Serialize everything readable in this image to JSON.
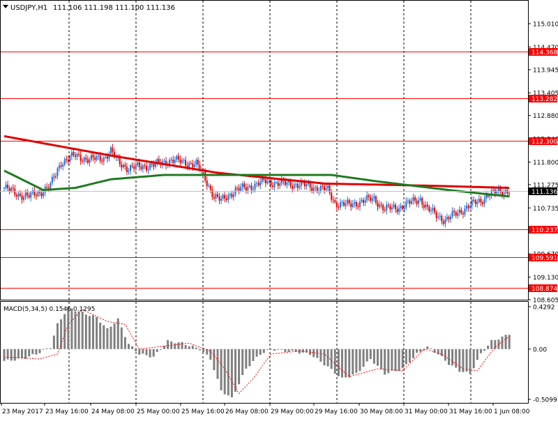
{
  "header": {
    "symbol": "USDJPY,H1",
    "ohlc": "111.106 111.198 111.100 111.136"
  },
  "price_axis": {
    "ticks": [
      "115.010",
      "114.470",
      "113.945",
      "113.405",
      "112.880",
      "112.340",
      "111.800",
      "111.275",
      "110.735",
      "110.210",
      "109.670",
      "109.130",
      "108.605"
    ],
    "current_price": "111.136"
  },
  "horizontal_levels": [
    {
      "label": "114.368",
      "value": 114.368
    },
    {
      "label": "113.282",
      "value": 113.282
    },
    {
      "label": "112.300",
      "value": 112.3
    },
    {
      "label": "110.237",
      "value": 110.237
    },
    {
      "label": "109.591",
      "value": 109.591
    },
    {
      "label": "108.874",
      "value": 108.874
    }
  ],
  "macd": {
    "label": "MACD(5,34,5) 0.1546 0.1295",
    "ticks": [
      "0.4292",
      "0.00",
      "-0.5099"
    ]
  },
  "time_axis": {
    "labels": [
      "23 May 2017",
      "23 May 16:00",
      "24 May 08:00",
      "25 May 00:00",
      "25 May 16:00",
      "26 May 08:00",
      "29 May 00:00",
      "29 May 16:00",
      "30 May 08:00",
      "31 May 00:00",
      "31 May 16:00",
      "1 Jun 08:00"
    ]
  },
  "colors": {
    "level_line": "#ff0000",
    "bull_candle": "#1e6fd9",
    "bear_candle": "#e00000",
    "ma_fast": "#e00000",
    "ma_slow": "#1f7a1f",
    "macd_hist": "#808080",
    "macd_signal": "#ff0000",
    "grid": "#000000"
  },
  "chart_data": [
    {
      "type": "candlestick",
      "title": "USDJPY,H1",
      "ylim": [
        108.605,
        115.3
      ],
      "levels": [
        114.368,
        113.282,
        112.3,
        110.237,
        109.591,
        108.874
      ],
      "close_path": [
        [
          0,
          111.2
        ],
        [
          8,
          111.05
        ],
        [
          14,
          111.0
        ],
        [
          20,
          111.1
        ],
        [
          26,
          111.25
        ],
        [
          32,
          111.8
        ],
        [
          40,
          111.95
        ],
        [
          48,
          111.85
        ],
        [
          56,
          111.9
        ],
        [
          60,
          112.05
        ],
        [
          64,
          111.8
        ],
        [
          70,
          111.65
        ],
        [
          78,
          111.7
        ],
        [
          86,
          111.75
        ],
        [
          94,
          111.85
        ],
        [
          100,
          111.8
        ],
        [
          108,
          111.75
        ],
        [
          112,
          111.5
        ],
        [
          118,
          111.0
        ],
        [
          122,
          110.9
        ],
        [
          130,
          111.15
        ],
        [
          136,
          111.2
        ],
        [
          146,
          111.35
        ],
        [
          156,
          111.3
        ],
        [
          166,
          111.28
        ],
        [
          176,
          111.2
        ],
        [
          182,
          111.15
        ],
        [
          186,
          110.85
        ],
        [
          194,
          110.8
        ],
        [
          202,
          110.9
        ],
        [
          208,
          110.95
        ],
        [
          214,
          110.7
        ],
        [
          222,
          110.75
        ],
        [
          228,
          110.85
        ],
        [
          234,
          110.95
        ],
        [
          238,
          110.7
        ],
        [
          244,
          110.55
        ],
        [
          248,
          110.45
        ],
        [
          254,
          110.6
        ],
        [
          262,
          110.8
        ],
        [
          268,
          110.9
        ],
        [
          272,
          111.05
        ],
        [
          280,
          111.12
        ],
        [
          284,
          111.14
        ]
      ],
      "ma_fast": [
        [
          0,
          112.4
        ],
        [
          60,
          111.95
        ],
        [
          120,
          111.55
        ],
        [
          180,
          111.3
        ],
        [
          240,
          111.25
        ],
        [
          284,
          111.2
        ]
      ],
      "ma_slow": [
        [
          0,
          111.6
        ],
        [
          22,
          111.15
        ],
        [
          40,
          111.2
        ],
        [
          60,
          111.4
        ],
        [
          90,
          111.5
        ],
        [
          150,
          111.5
        ],
        [
          184,
          111.5
        ],
        [
          210,
          111.35
        ],
        [
          250,
          111.15
        ],
        [
          284,
          111.0
        ]
      ]
    },
    {
      "type": "bar",
      "title": "MACD(5,34,5) 0.1546 0.1295",
      "ylim": [
        -0.5099,
        0.4292
      ],
      "histogram_path": [
        [
          0,
          -0.12
        ],
        [
          10,
          -0.1
        ],
        [
          18,
          -0.05
        ],
        [
          26,
          0.02
        ],
        [
          30,
          0.25
        ],
        [
          36,
          0.42
        ],
        [
          42,
          0.38
        ],
        [
          52,
          0.32
        ],
        [
          58,
          0.2
        ],
        [
          64,
          0.3
        ],
        [
          70,
          0.05
        ],
        [
          76,
          -0.05
        ],
        [
          84,
          -0.08
        ],
        [
          92,
          0.08
        ],
        [
          100,
          0.06
        ],
        [
          110,
          0.0
        ],
        [
          116,
          -0.1
        ],
        [
          122,
          -0.42
        ],
        [
          128,
          -0.5
        ],
        [
          136,
          -0.2
        ],
        [
          144,
          -0.05
        ],
        [
          150,
          0.0
        ],
        [
          158,
          -0.02
        ],
        [
          164,
          -0.03
        ],
        [
          172,
          -0.05
        ],
        [
          182,
          -0.18
        ],
        [
          190,
          -0.3
        ],
        [
          198,
          -0.25
        ],
        [
          206,
          -0.1
        ],
        [
          214,
          -0.25
        ],
        [
          224,
          -0.2
        ],
        [
          232,
          -0.05
        ],
        [
          238,
          0.02
        ],
        [
          244,
          -0.05
        ],
        [
          250,
          -0.15
        ],
        [
          256,
          -0.22
        ],
        [
          262,
          -0.25
        ],
        [
          268,
          -0.05
        ],
        [
          274,
          0.08
        ],
        [
          280,
          0.12
        ],
        [
          284,
          0.155
        ]
      ],
      "signal_path": [
        [
          0,
          -0.08
        ],
        [
          20,
          -0.1
        ],
        [
          30,
          -0.05
        ],
        [
          36,
          0.25
        ],
        [
          44,
          0.4
        ],
        [
          58,
          0.28
        ],
        [
          68,
          0.25
        ],
        [
          76,
          0.0
        ],
        [
          90,
          0.03
        ],
        [
          104,
          0.06
        ],
        [
          116,
          -0.02
        ],
        [
          124,
          -0.2
        ],
        [
          132,
          -0.45
        ],
        [
          140,
          -0.3
        ],
        [
          150,
          -0.05
        ],
        [
          166,
          -0.02
        ],
        [
          180,
          -0.05
        ],
        [
          194,
          -0.28
        ],
        [
          210,
          -0.2
        ],
        [
          224,
          -0.22
        ],
        [
          236,
          0.0
        ],
        [
          246,
          -0.05
        ],
        [
          258,
          -0.2
        ],
        [
          266,
          -0.22
        ],
        [
          276,
          0.02
        ],
        [
          284,
          0.13
        ]
      ]
    }
  ]
}
